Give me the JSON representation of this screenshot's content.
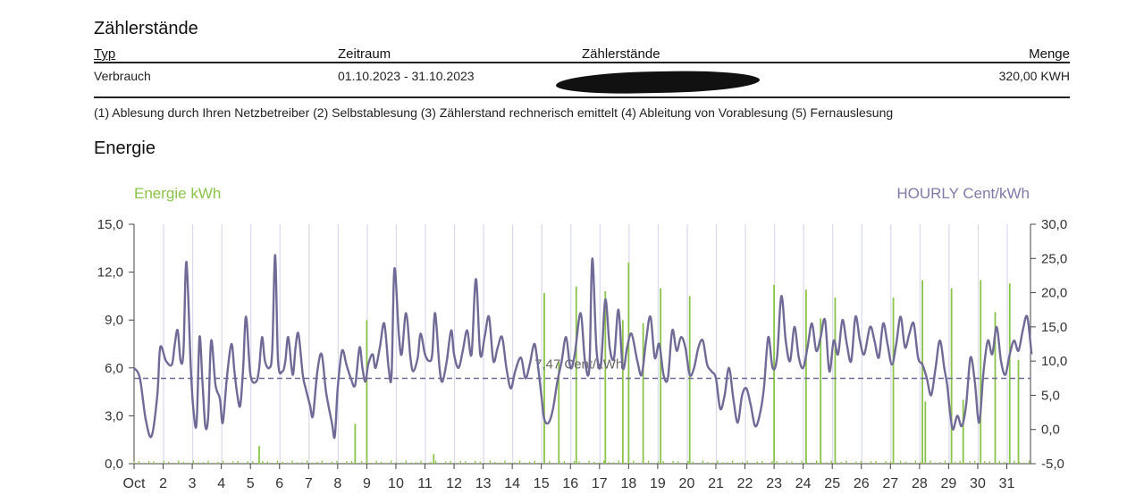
{
  "section_title": "Zählerstände",
  "table": {
    "headers": [
      "Typ",
      "Zeitraum",
      "Zählerstände",
      "Menge"
    ],
    "row": {
      "typ": "Verbrauch",
      "zeitraum": "01.10.2023 - 31.10.2023",
      "zaehlerstaende": "",
      "menge": "320,00 KWH"
    }
  },
  "footnote": "(1) Ablesung durch Ihren Netzbetreiber (2) Selbstablesung (3) Zählerstand rechnerisch emittelt (4) Ableitung von Vorablesung (5) Fernauslesung",
  "energy_title": "Energie",
  "colors": {
    "energy": "#8bc34a",
    "price": "#6f6a96",
    "grid": "#d9d9ef",
    "avg": "#6f6a96"
  },
  "chart_data": {
    "type": "bar+line",
    "left_axis": {
      "label": "Energie kWh",
      "ticks": [
        "15,0",
        "12,0",
        "9,0",
        "6,0",
        "3,0",
        "0,0"
      ],
      "range": [
        0,
        15
      ]
    },
    "right_axis": {
      "label": "HOURLY Cent/kWh",
      "ticks": [
        "30,0",
        "25,0",
        "20,0",
        "15,0",
        "10,0",
        "5,0",
        "0,0",
        "-5,0"
      ],
      "range": [
        -5,
        30
      ]
    },
    "x_ticks": [
      "Oct",
      "2",
      "3",
      "4",
      "5",
      "6",
      "7",
      "8",
      "9",
      "10",
      "11",
      "12",
      "13",
      "14",
      "15",
      "16",
      "17",
      "18",
      "19",
      "20",
      "21",
      "22",
      "23",
      "24",
      "25",
      "26",
      "27",
      "28",
      "29",
      "30",
      "31"
    ],
    "average_line": {
      "value": 7.47,
      "label": "7,47 Cent/kWh"
    },
    "energy_spikes_kwh": [
      {
        "day": 5.3,
        "v": 1.1
      },
      {
        "day": 8.6,
        "v": 2.5
      },
      {
        "day": 9.0,
        "v": 9.0
      },
      {
        "day": 11.3,
        "v": 0.6
      },
      {
        "day": 15.1,
        "v": 10.7
      },
      {
        "day": 15.6,
        "v": 6.4
      },
      {
        "day": 16.2,
        "v": 11.1
      },
      {
        "day": 17.2,
        "v": 10.8
      },
      {
        "day": 17.8,
        "v": 9.0
      },
      {
        "day": 18.0,
        "v": 12.6
      },
      {
        "day": 18.5,
        "v": 8.8
      },
      {
        "day": 19.1,
        "v": 11.0
      },
      {
        "day": 20.1,
        "v": 10.5
      },
      {
        "day": 23.0,
        "v": 11.2
      },
      {
        "day": 24.1,
        "v": 10.9
      },
      {
        "day": 24.6,
        "v": 9.1
      },
      {
        "day": 25.1,
        "v": 10.4
      },
      {
        "day": 27.1,
        "v": 10.4
      },
      {
        "day": 28.1,
        "v": 11.5
      },
      {
        "day": 28.2,
        "v": 3.9
      },
      {
        "day": 29.1,
        "v": 11.0
      },
      {
        "day": 29.5,
        "v": 4.0
      },
      {
        "day": 30.1,
        "v": 11.5
      },
      {
        "day": 30.6,
        "v": 9.5
      },
      {
        "day": 31.1,
        "v": 11.3
      },
      {
        "day": 31.4,
        "v": 6.5
      }
    ],
    "price_series_cent": [
      [
        1.0,
        9.0
      ],
      [
        1.2,
        7.5
      ],
      [
        1.4,
        1.5
      ],
      [
        1.6,
        -1.0
      ],
      [
        1.8,
        5.0
      ],
      [
        1.9,
        12.0
      ],
      [
        2.1,
        10.0
      ],
      [
        2.3,
        9.5
      ],
      [
        2.4,
        12.5
      ],
      [
        2.5,
        14.5
      ],
      [
        2.6,
        10.0
      ],
      [
        2.7,
        11.5
      ],
      [
        2.8,
        24.5
      ],
      [
        2.95,
        9.0
      ],
      [
        3.05,
        2.5
      ],
      [
        3.15,
        1.0
      ],
      [
        3.25,
        13.5
      ],
      [
        3.35,
        7.0
      ],
      [
        3.45,
        0.5
      ],
      [
        3.55,
        2.0
      ],
      [
        3.65,
        13.0
      ],
      [
        3.8,
        6.5
      ],
      [
        3.95,
        4.5
      ],
      [
        4.05,
        1.0
      ],
      [
        4.2,
        8.0
      ],
      [
        4.35,
        12.5
      ],
      [
        4.45,
        8.5
      ],
      [
        4.55,
        5.0
      ],
      [
        4.65,
        3.5
      ],
      [
        4.75,
        9.0
      ],
      [
        4.85,
        16.5
      ],
      [
        5.0,
        8.0
      ],
      [
        5.2,
        7.0
      ],
      [
        5.3,
        9.0
      ],
      [
        5.4,
        13.5
      ],
      [
        5.5,
        10.0
      ],
      [
        5.65,
        9.0
      ],
      [
        5.75,
        11.5
      ],
      [
        5.85,
        25.5
      ],
      [
        5.95,
        10.0
      ],
      [
        6.1,
        8.5
      ],
      [
        6.2,
        10.0
      ],
      [
        6.3,
        13.5
      ],
      [
        6.45,
        8.0
      ],
      [
        6.55,
        12.0
      ],
      [
        6.65,
        14.0
      ],
      [
        6.8,
        8.0
      ],
      [
        6.9,
        6.0
      ],
      [
        7.05,
        3.5
      ],
      [
        7.15,
        2.0
      ],
      [
        7.3,
        8.5
      ],
      [
        7.45,
        11.0
      ],
      [
        7.6,
        5.5
      ],
      [
        7.8,
        1.0
      ],
      [
        7.9,
        -1.0
      ],
      [
        8.0,
        6.0
      ],
      [
        8.15,
        11.5
      ],
      [
        8.3,
        9.5
      ],
      [
        8.45,
        7.5
      ],
      [
        8.6,
        6.5
      ],
      [
        8.75,
        12.0
      ],
      [
        8.85,
        9.0
      ],
      [
        8.95,
        7.0
      ],
      [
        9.05,
        9.5
      ],
      [
        9.2,
        11.0
      ],
      [
        9.3,
        9.0
      ],
      [
        9.45,
        12.0
      ],
      [
        9.6,
        15.5
      ],
      [
        9.75,
        9.0
      ],
      [
        9.85,
        8.0
      ],
      [
        9.95,
        23.5
      ],
      [
        10.1,
        14.0
      ],
      [
        10.2,
        11.0
      ],
      [
        10.35,
        17.0
      ],
      [
        10.5,
        10.5
      ],
      [
        10.6,
        8.5
      ],
      [
        10.75,
        10.5
      ],
      [
        10.85,
        14.0
      ],
      [
        11.0,
        11.0
      ],
      [
        11.15,
        10.0
      ],
      [
        11.25,
        11.0
      ],
      [
        11.35,
        17.0
      ],
      [
        11.5,
        9.0
      ],
      [
        11.6,
        7.0
      ],
      [
        11.75,
        10.0
      ],
      [
        11.9,
        14.5
      ],
      [
        12.0,
        11.0
      ],
      [
        12.15,
        9.0
      ],
      [
        12.3,
        11.5
      ],
      [
        12.45,
        14.5
      ],
      [
        12.6,
        11.0
      ],
      [
        12.75,
        22.0
      ],
      [
        12.9,
        11.0
      ],
      [
        13.05,
        13.5
      ],
      [
        13.2,
        16.5
      ],
      [
        13.35,
        10.0
      ],
      [
        13.5,
        12.0
      ],
      [
        13.65,
        13.5
      ],
      [
        13.8,
        9.0
      ],
      [
        13.95,
        6.0
      ],
      [
        14.1,
        8.5
      ],
      [
        14.3,
        10.5
      ],
      [
        14.45,
        7.5
      ],
      [
        14.6,
        9.5
      ],
      [
        14.75,
        12.5
      ],
      [
        14.85,
        10.5
      ],
      [
        15.0,
        5.0
      ],
      [
        15.1,
        1.5
      ],
      [
        15.25,
        1.0
      ],
      [
        15.4,
        3.0
      ],
      [
        15.55,
        7.0
      ],
      [
        15.7,
        10.0
      ],
      [
        15.85,
        13.5
      ],
      [
        16.0,
        9.0
      ],
      [
        16.15,
        11.0
      ],
      [
        16.35,
        17.0
      ],
      [
        16.5,
        10.0
      ],
      [
        16.65,
        9.0
      ],
      [
        16.75,
        25.0
      ],
      [
        16.9,
        11.5
      ],
      [
        17.05,
        9.5
      ],
      [
        17.2,
        19.0
      ],
      [
        17.35,
        12.0
      ],
      [
        17.5,
        10.5
      ],
      [
        17.65,
        17.5
      ],
      [
        17.8,
        9.0
      ],
      [
        17.95,
        12.0
      ],
      [
        18.1,
        14.0
      ],
      [
        18.3,
        10.0
      ],
      [
        18.45,
        8.0
      ],
      [
        18.6,
        13.0
      ],
      [
        18.75,
        16.5
      ],
      [
        18.9,
        10.5
      ],
      [
        19.05,
        12.5
      ],
      [
        19.2,
        8.0
      ],
      [
        19.35,
        7.5
      ],
      [
        19.5,
        14.5
      ],
      [
        19.65,
        11.5
      ],
      [
        19.8,
        13.5
      ],
      [
        19.95,
        12.0
      ],
      [
        20.1,
        8.0
      ],
      [
        20.25,
        9.0
      ],
      [
        20.4,
        12.0
      ],
      [
        20.55,
        13.0
      ],
      [
        20.7,
        9.5
      ],
      [
        20.85,
        8.5
      ],
      [
        21.0,
        7.5
      ],
      [
        21.15,
        3.0
      ],
      [
        21.3,
        5.0
      ],
      [
        21.45,
        9.0
      ],
      [
        21.6,
        4.5
      ],
      [
        21.75,
        1.0
      ],
      [
        21.9,
        5.0
      ],
      [
        22.05,
        6.0
      ],
      [
        22.2,
        3.5
      ],
      [
        22.35,
        0.5
      ],
      [
        22.5,
        2.0
      ],
      [
        22.65,
        6.0
      ],
      [
        22.8,
        13.5
      ],
      [
        22.95,
        9.0
      ],
      [
        23.1,
        10.5
      ],
      [
        23.25,
        19.5
      ],
      [
        23.4,
        13.0
      ],
      [
        23.55,
        10.0
      ],
      [
        23.7,
        15.0
      ],
      [
        23.85,
        10.5
      ],
      [
        24.0,
        9.0
      ],
      [
        24.15,
        12.0
      ],
      [
        24.3,
        15.5
      ],
      [
        24.45,
        11.5
      ],
      [
        24.6,
        13.5
      ],
      [
        24.75,
        16.0
      ],
      [
        24.9,
        8.5
      ],
      [
        25.05,
        13.0
      ],
      [
        25.2,
        11.0
      ],
      [
        25.35,
        16.0
      ],
      [
        25.5,
        12.5
      ],
      [
        25.65,
        10.0
      ],
      [
        25.8,
        16.5
      ],
      [
        25.95,
        13.0
      ],
      [
        26.1,
        11.0
      ],
      [
        26.3,
        15.0
      ],
      [
        26.45,
        13.0
      ],
      [
        26.6,
        10.5
      ],
      [
        26.75,
        15.5
      ],
      [
        26.9,
        12.5
      ],
      [
        27.05,
        9.5
      ],
      [
        27.2,
        12.5
      ],
      [
        27.35,
        16.5
      ],
      [
        27.5,
        12.0
      ],
      [
        27.65,
        14.0
      ],
      [
        27.8,
        15.5
      ],
      [
        27.95,
        10.5
      ],
      [
        28.1,
        9.5
      ],
      [
        28.25,
        7.5
      ],
      [
        28.4,
        5.0
      ],
      [
        28.55,
        9.0
      ],
      [
        28.7,
        13.0
      ],
      [
        28.85,
        9.0
      ],
      [
        28.95,
        6.5
      ],
      [
        29.05,
        2.5
      ],
      [
        29.15,
        0.0
      ],
      [
        29.3,
        2.0
      ],
      [
        29.45,
        0.5
      ],
      [
        29.6,
        3.5
      ],
      [
        29.75,
        10.5
      ],
      [
        29.9,
        7.0
      ],
      [
        30.05,
        1.0
      ],
      [
        30.2,
        8.5
      ],
      [
        30.35,
        13.0
      ],
      [
        30.5,
        11.0
      ],
      [
        30.65,
        15.0
      ],
      [
        30.8,
        10.0
      ],
      [
        30.95,
        8.0
      ],
      [
        31.1,
        11.0
      ],
      [
        31.25,
        13.0
      ],
      [
        31.4,
        11.5
      ],
      [
        31.55,
        14.5
      ],
      [
        31.7,
        16.5
      ],
      [
        31.85,
        11.0
      ]
    ]
  }
}
